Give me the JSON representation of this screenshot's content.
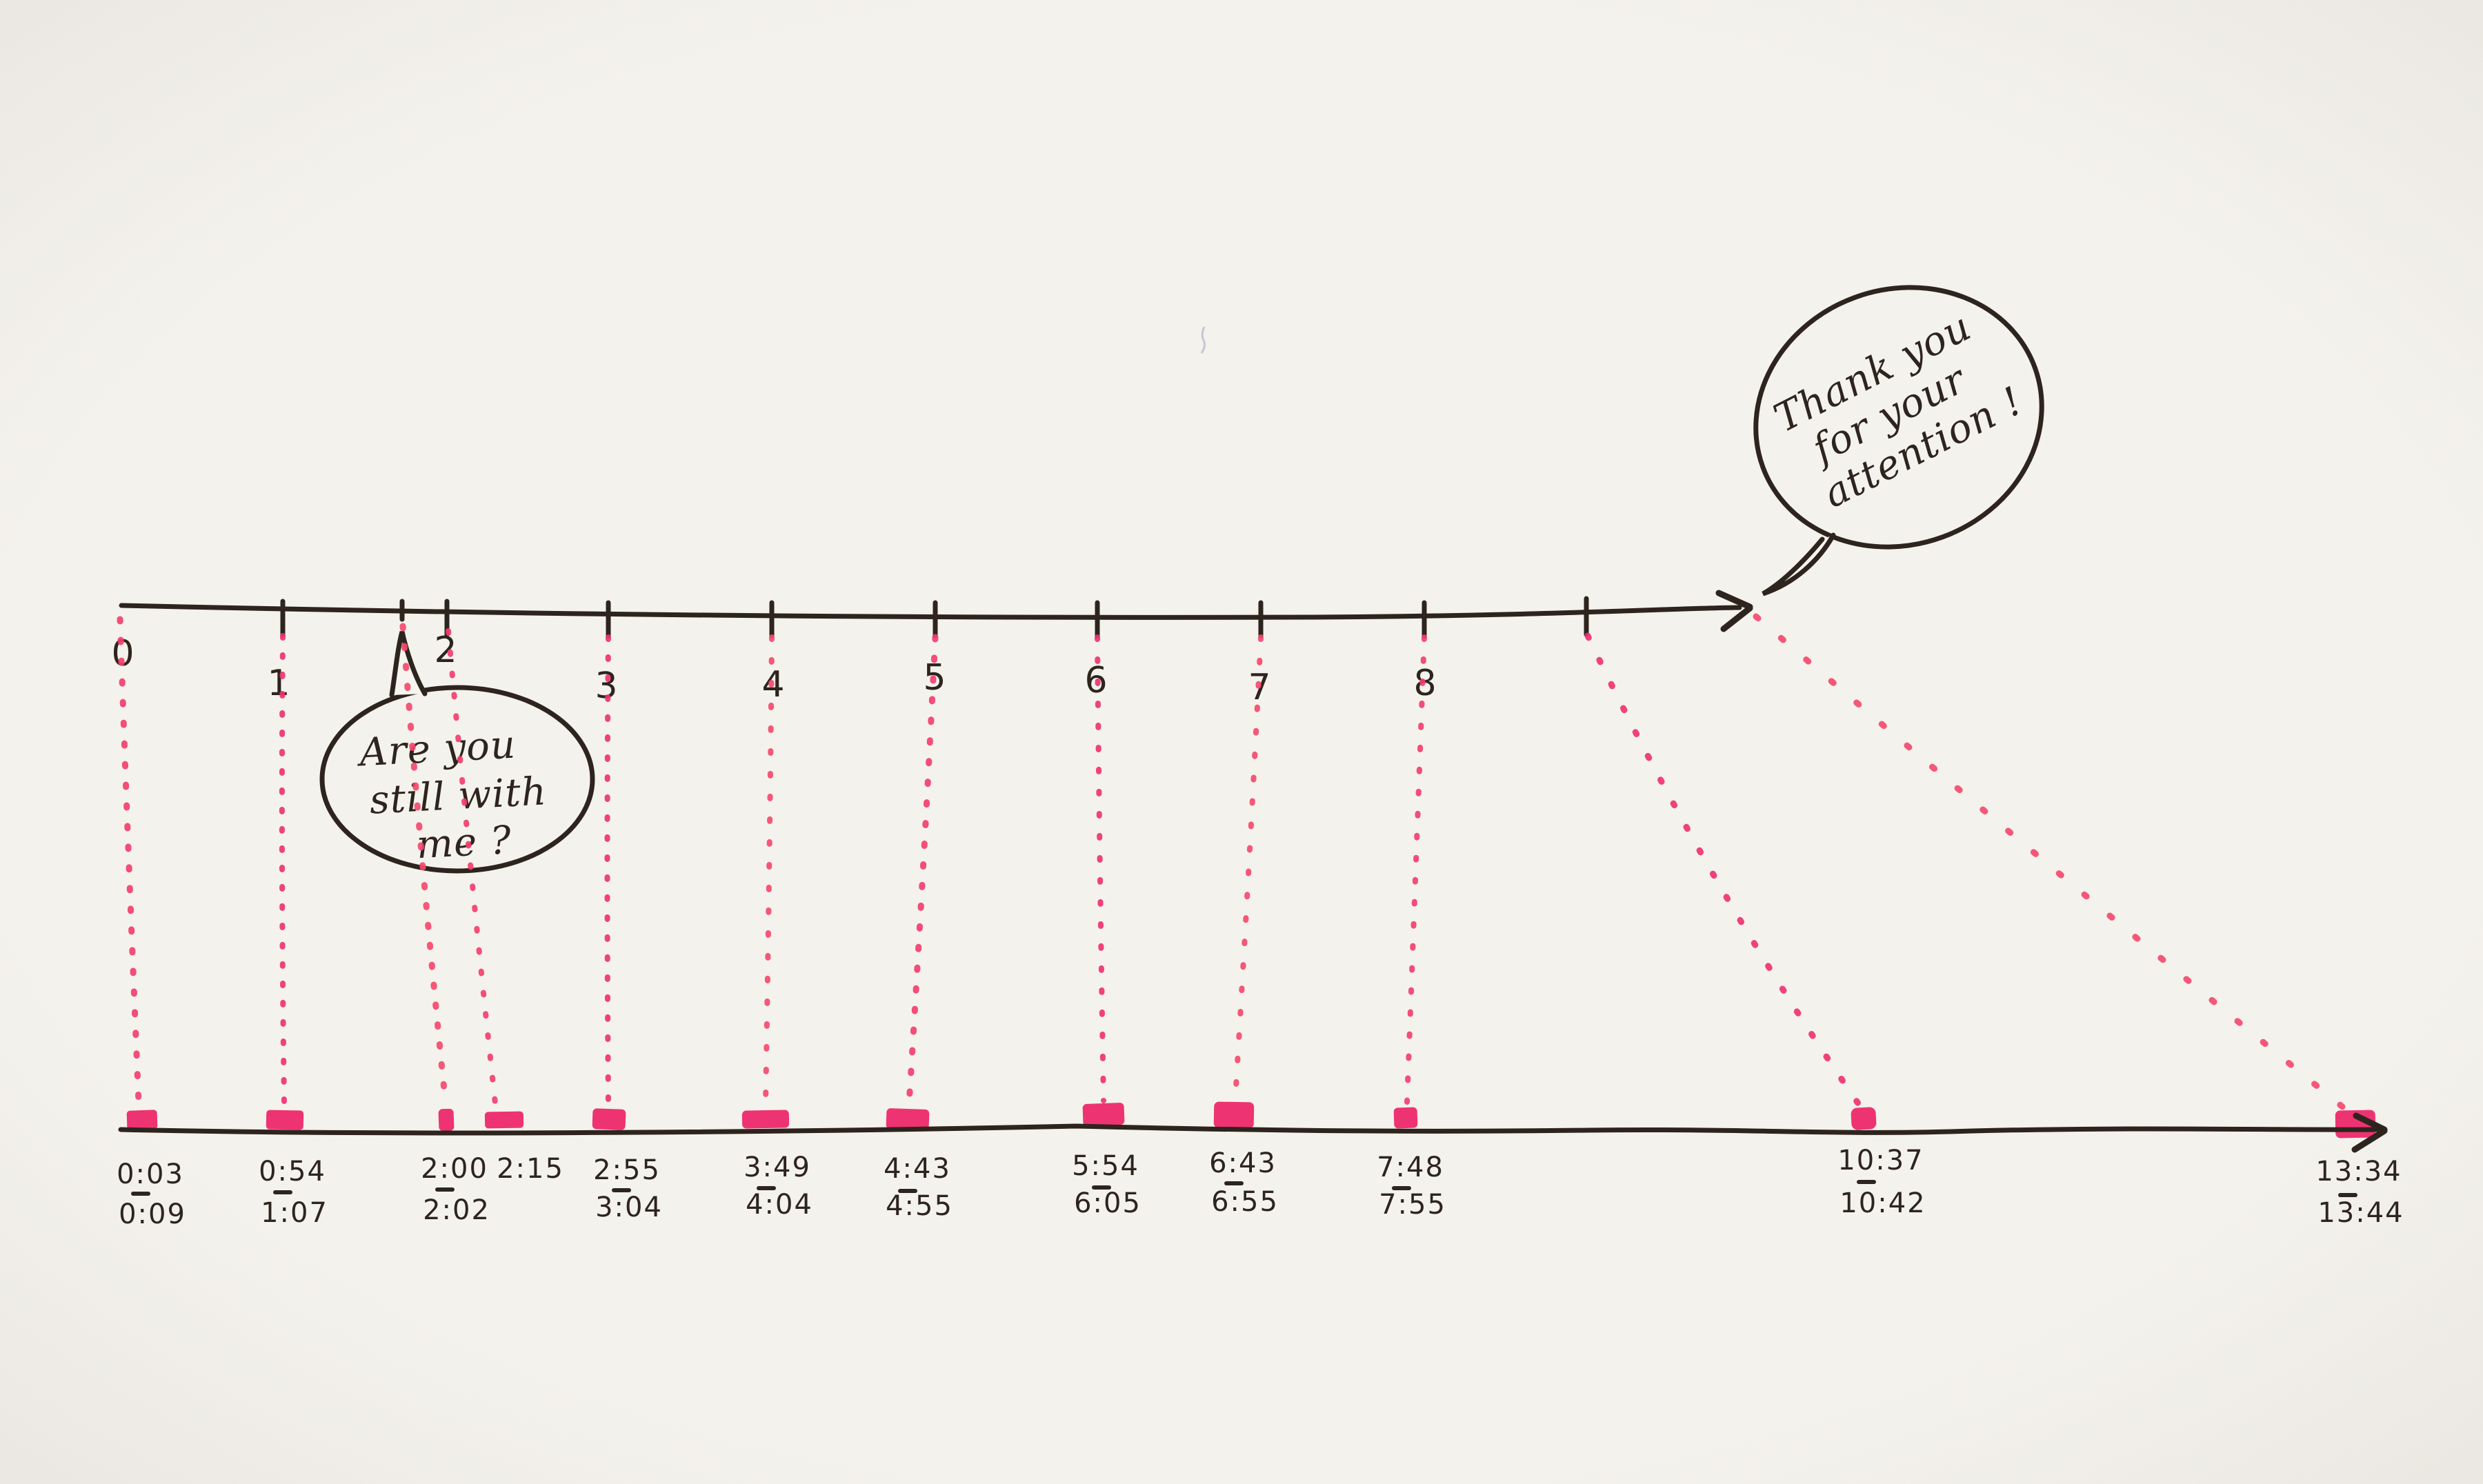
{
  "palette": {
    "paper": "#f6f4ee",
    "ink": "#2e241e",
    "marker_pink": "#ee3372",
    "marker_dot": "#f23f6e"
  },
  "top_axis": {
    "minute_labels": [
      "0",
      "1",
      "2",
      "3",
      "4",
      "5",
      "6",
      "7",
      "8"
    ]
  },
  "bottom_labels": [
    {
      "start": "0:03",
      "end": "0:09",
      "dash": "—"
    },
    {
      "start": "0:54",
      "end": "1:07",
      "dash": "—"
    },
    {
      "start": "2:00",
      "end": "2:02",
      "dash": "—"
    },
    {
      "start": "2:15",
      "end": null,
      "dash": null
    },
    {
      "start": "2:55",
      "end": "3:04",
      "dash": "—"
    },
    {
      "start": "3:49",
      "end": "4:04",
      "dash": "—"
    },
    {
      "start": "4:43",
      "end": "4:55",
      "dash": "—"
    },
    {
      "start": "5:54",
      "end": "6:05",
      "dash": "—"
    },
    {
      "start": "6:43",
      "end": "6:55",
      "dash": "—"
    },
    {
      "start": "7:48",
      "end": "7:55",
      "dash": "—"
    },
    {
      "start": "10:37",
      "end": "10:42",
      "dash": "—"
    },
    {
      "start": "13:34",
      "end": "13:44",
      "dash": "—"
    }
  ],
  "bubbles": {
    "question": {
      "lines": [
        "Are you",
        "still with",
        "me ?"
      ]
    },
    "thanks": {
      "lines": [
        "Thank you",
        "for your",
        "attention !"
      ]
    }
  },
  "chart_data": {
    "type": "timeline-mapping",
    "description_top_axis": "hand-drawn ruler with minute ticks 0-8, an extra unlabeled tick after 8, ending in an arrow",
    "description_bottom_axis": "hand-drawn line with pink highlighter marks at actual times, ending in an arrow",
    "segments": [
      {
        "planned_tick": "0",
        "actual_start": "0:03",
        "actual_end": "0:09"
      },
      {
        "planned_tick": "1",
        "actual_start": "0:54",
        "actual_end": "1:07"
      },
      {
        "planned_tick": "2 (first tick)",
        "actual_start": "2:00",
        "actual_end": "2:02"
      },
      {
        "planned_tick": "2",
        "actual_start": "2:15",
        "actual_end": null
      },
      {
        "planned_tick": "3",
        "actual_start": "2:55",
        "actual_end": "3:04"
      },
      {
        "planned_tick": "4",
        "actual_start": "3:49",
        "actual_end": "4:04"
      },
      {
        "planned_tick": "5",
        "actual_start": "4:43",
        "actual_end": "4:55"
      },
      {
        "planned_tick": "6",
        "actual_start": "5:54",
        "actual_end": "6:05"
      },
      {
        "planned_tick": "7",
        "actual_start": "6:43",
        "actual_end": "6:55"
      },
      {
        "planned_tick": "8",
        "actual_start": "7:48",
        "actual_end": "7:55"
      },
      {
        "planned_tick": "unlabeled tick after 8",
        "actual_start": "10:37",
        "actual_end": "10:42"
      },
      {
        "planned_tick": "arrow end",
        "actual_start": "13:34",
        "actual_end": "13:44"
      }
    ]
  }
}
